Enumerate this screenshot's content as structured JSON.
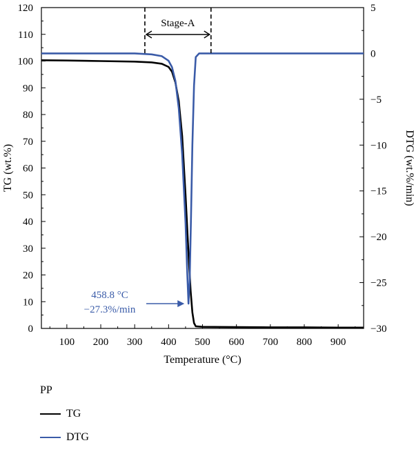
{
  "chart_data": {
    "type": "line",
    "title": "",
    "xlabel": "Temperature (°C)",
    "ylabel_left": "TG (wt.%)",
    "ylabel_right": "DTG (wt.%/min)",
    "xlim": [
      25,
      975
    ],
    "ylim_left": [
      0,
      120
    ],
    "ylim_right": [
      -30,
      5
    ],
    "x_ticks": [
      100,
      200,
      300,
      400,
      500,
      600,
      700,
      800,
      900
    ],
    "y_left_ticks": [
      0,
      10,
      20,
      30,
      40,
      50,
      60,
      70,
      80,
      90,
      100,
      110,
      120
    ],
    "y_right_ticks": [
      -30,
      -25,
      -20,
      -15,
      -10,
      -5,
      0,
      5
    ],
    "y_right_tick_labels": [
      "−30",
      "−25",
      "−20",
      "−15",
      "−10",
      "−5",
      "0",
      "5"
    ],
    "series": [
      {
        "name": "TG",
        "axis": "left",
        "color": "#000000",
        "x": [
          25,
          100,
          200,
          300,
          350,
          380,
          400,
          410,
          420,
          430,
          440,
          450,
          460,
          465,
          470,
          475,
          480,
          490,
          500,
          600,
          700,
          800,
          900,
          975
        ],
        "y": [
          100.3,
          100.2,
          100.0,
          99.8,
          99.5,
          99.0,
          97.8,
          96.0,
          92.0,
          85.0,
          72.0,
          50.0,
          25.0,
          14.0,
          6.0,
          2.0,
          0.8,
          0.7,
          0.6,
          0.5,
          0.4,
          0.4,
          0.3,
          0.3
        ]
      },
      {
        "name": "DTG",
        "axis": "right",
        "color": "#3a5ba8",
        "x": [
          25,
          100,
          200,
          300,
          350,
          380,
          400,
          410,
          420,
          430,
          440,
          450,
          455,
          458.8,
          462,
          466,
          470,
          475,
          480,
          490,
          500,
          600,
          700,
          800,
          900,
          975
        ],
        "y": [
          0.0,
          0.0,
          0.0,
          0.0,
          -0.1,
          -0.3,
          -0.8,
          -1.5,
          -3.0,
          -6.0,
          -11.0,
          -18.5,
          -24.0,
          -27.3,
          -25.0,
          -18.0,
          -10.0,
          -3.5,
          -0.4,
          0.0,
          0.0,
          0.0,
          0.0,
          0.0,
          0.0,
          0.0
        ]
      }
    ],
    "annotations": {
      "stage_label": "Stage-A",
      "stage_range": [
        330,
        525
      ],
      "peak_label_line1": "458.8 °C",
      "peak_label_line2": "−27.3%/min",
      "peak_point": {
        "x": 458.8,
        "y": -27.3
      },
      "peak_label_color": "#3a5ba8"
    },
    "grid": false,
    "legend_title": "PP",
    "legend_position": "bottom-left"
  }
}
